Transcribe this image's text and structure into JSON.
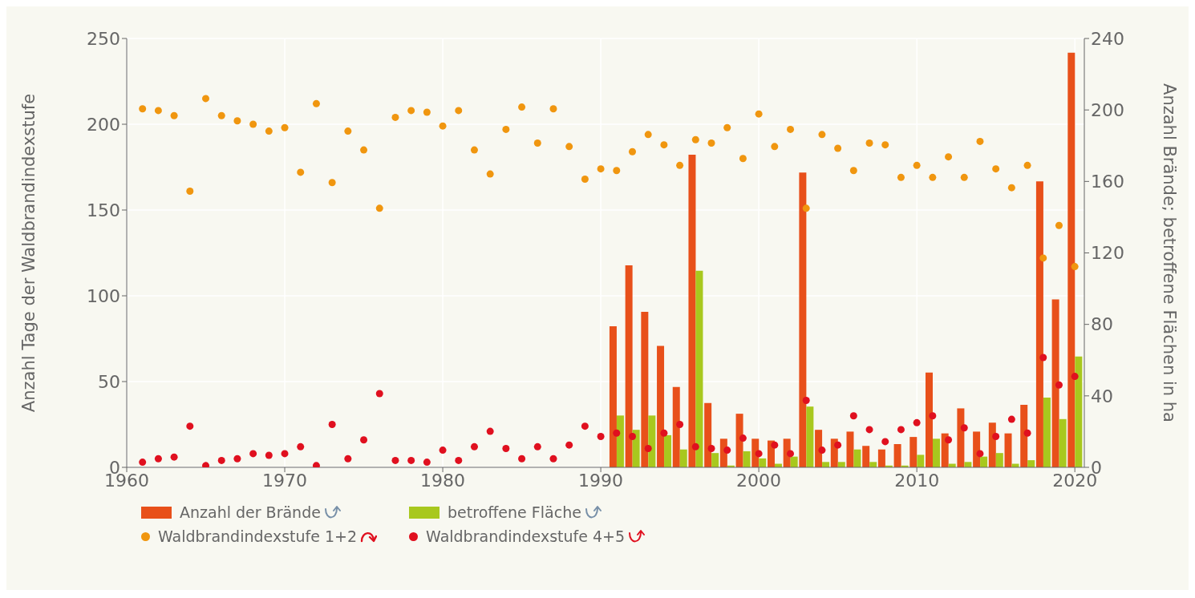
{
  "chart_data": {
    "type": "bar",
    "ylabel": "Anzahl Tage der Waldbrandindexstufe",
    "y2label": "Anzahl Brände; betroffene Flächen in ha",
    "xlim": [
      1960,
      2020.6
    ],
    "xticks": [
      1960,
      1970,
      1980,
      1990,
      2000,
      2010,
      2020
    ],
    "ylim": [
      0,
      250
    ],
    "yticks": [
      0,
      50,
      100,
      150,
      200,
      250
    ],
    "y2lim": [
      0,
      240
    ],
    "y2ticks": [
      0,
      40,
      80,
      120,
      160,
      200,
      240
    ],
    "grid": true,
    "legend": "bottom",
    "marker": "circle",
    "series": [
      {
        "name": "Anzahl der Brände",
        "axis": "y2",
        "color": "#e8501a",
        "x": [
          1991,
          1992,
          1993,
          1994,
          1995,
          1996,
          1997,
          1998,
          1999,
          2000,
          2001,
          2002,
          2003,
          2004,
          2005,
          2006,
          2007,
          2008,
          2009,
          2010,
          2011,
          2012,
          2013,
          2014,
          2015,
          2016,
          2017,
          2018,
          2019,
          2020
        ],
        "values": [
          79,
          113,
          87,
          68,
          45,
          175,
          36,
          16,
          30,
          16,
          15,
          16,
          165,
          21,
          16,
          20,
          12,
          10,
          13,
          17,
          53,
          19,
          33,
          20,
          25,
          19,
          35,
          160,
          94,
          232
        ]
      },
      {
        "name": "betroffene Fläche",
        "axis": "y2",
        "color": "#a8c81e",
        "x": [
          1991,
          1992,
          1993,
          1994,
          1995,
          1996,
          1997,
          1998,
          1999,
          2000,
          2001,
          2002,
          2003,
          2004,
          2005,
          2006,
          2007,
          2008,
          2009,
          2010,
          2011,
          2012,
          2013,
          2014,
          2015,
          2016,
          2017,
          2018,
          2019,
          2020
        ],
        "values": [
          29,
          21,
          29,
          18,
          10,
          110,
          8,
          1,
          9,
          5,
          2,
          6,
          34,
          3,
          3,
          10,
          3,
          1,
          1,
          7,
          16,
          2,
          3,
          6,
          8,
          2,
          4,
          39,
          27,
          62
        ]
      },
      {
        "name": "Waldbrandindexstufe 1+2",
        "type": "scatter",
        "color": "#f0960f",
        "x": [
          1961,
          1962,
          1963,
          1964,
          1965,
          1966,
          1967,
          1968,
          1969,
          1970,
          1971,
          1972,
          1973,
          1974,
          1975,
          1976,
          1977,
          1978,
          1979,
          1980,
          1981,
          1982,
          1983,
          1984,
          1985,
          1986,
          1987,
          1988,
          1989,
          1990,
          1991,
          1992,
          1993,
          1994,
          1995,
          1996,
          1997,
          1998,
          1999,
          2000,
          2001,
          2002,
          2003,
          2004,
          2005,
          2006,
          2007,
          2008,
          2009,
          2010,
          2011,
          2012,
          2013,
          2014,
          2015,
          2016,
          2017,
          2018,
          2019,
          2020
        ],
        "values": [
          209,
          208,
          205,
          161,
          215,
          205,
          202,
          200,
          196,
          198,
          172,
          212,
          166,
          196,
          185,
          151,
          204,
          208,
          207,
          199,
          208,
          185,
          171,
          197,
          210,
          189,
          209,
          187,
          168,
          174,
          173,
          184,
          194,
          188,
          176,
          191,
          189,
          198,
          180,
          206,
          187,
          197,
          151,
          194,
          186,
          173,
          189,
          188,
          169,
          176,
          169,
          181,
          169,
          190,
          174,
          163,
          176,
          122,
          141,
          117
        ]
      },
      {
        "name": "Waldbrandindexstufe 4+5",
        "type": "scatter",
        "color": "#e0101f",
        "x": [
          1961,
          1962,
          1963,
          1964,
          1965,
          1966,
          1967,
          1968,
          1969,
          1970,
          1971,
          1972,
          1973,
          1974,
          1975,
          1976,
          1977,
          1978,
          1979,
          1980,
          1981,
          1982,
          1983,
          1984,
          1985,
          1986,
          1987,
          1988,
          1989,
          1990,
          1991,
          1992,
          1993,
          1994,
          1995,
          1996,
          1997,
          1998,
          1999,
          2000,
          2001,
          2002,
          2003,
          2004,
          2005,
          2006,
          2007,
          2008,
          2009,
          2010,
          2011,
          2012,
          2013,
          2014,
          2015,
          2016,
          2017,
          2018,
          2019,
          2020
        ],
        "values": [
          3,
          5,
          6,
          24,
          1,
          4,
          5,
          8,
          7,
          8,
          12,
          1,
          25,
          5,
          16,
          43,
          4,
          4,
          3,
          10,
          4,
          12,
          21,
          11,
          5,
          12,
          5,
          13,
          24,
          18,
          20,
          18,
          11,
          20,
          25,
          12,
          11,
          10,
          17,
          8,
          13,
          8,
          39,
          10,
          13,
          30,
          22,
          15,
          22,
          26,
          30,
          16,
          23,
          8,
          18,
          28,
          20,
          64,
          48,
          53
        ]
      }
    ]
  }
}
